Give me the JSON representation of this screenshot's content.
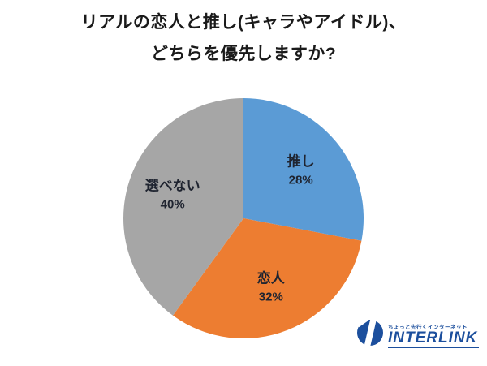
{
  "title": {
    "line1": "リアルの恋人と推し(キャラやアイドル)、",
    "line2": "どちらを優先しますか?"
  },
  "chart_data": {
    "type": "pie",
    "title": "リアルの恋人と推し(キャラやアイドル)、どちらを優先しますか?",
    "categories": [
      "推し",
      "恋人",
      "選べない"
    ],
    "values": [
      28,
      32,
      40
    ],
    "value_labels": [
      "28%",
      "32%",
      "40%"
    ],
    "colors": [
      "#5B9BD5",
      "#ED7D31",
      "#A6A6A6"
    ],
    "start_angle_deg": 0,
    "direction": "clockwise",
    "label_position": "inside",
    "label_color": "#1f2430",
    "legend": "none"
  },
  "logo": {
    "tagline": "ちょっと先行くインターネット",
    "name": "INTERLINK",
    "color": "#1c4f9d",
    "mark": "interlink-globe-icon"
  }
}
